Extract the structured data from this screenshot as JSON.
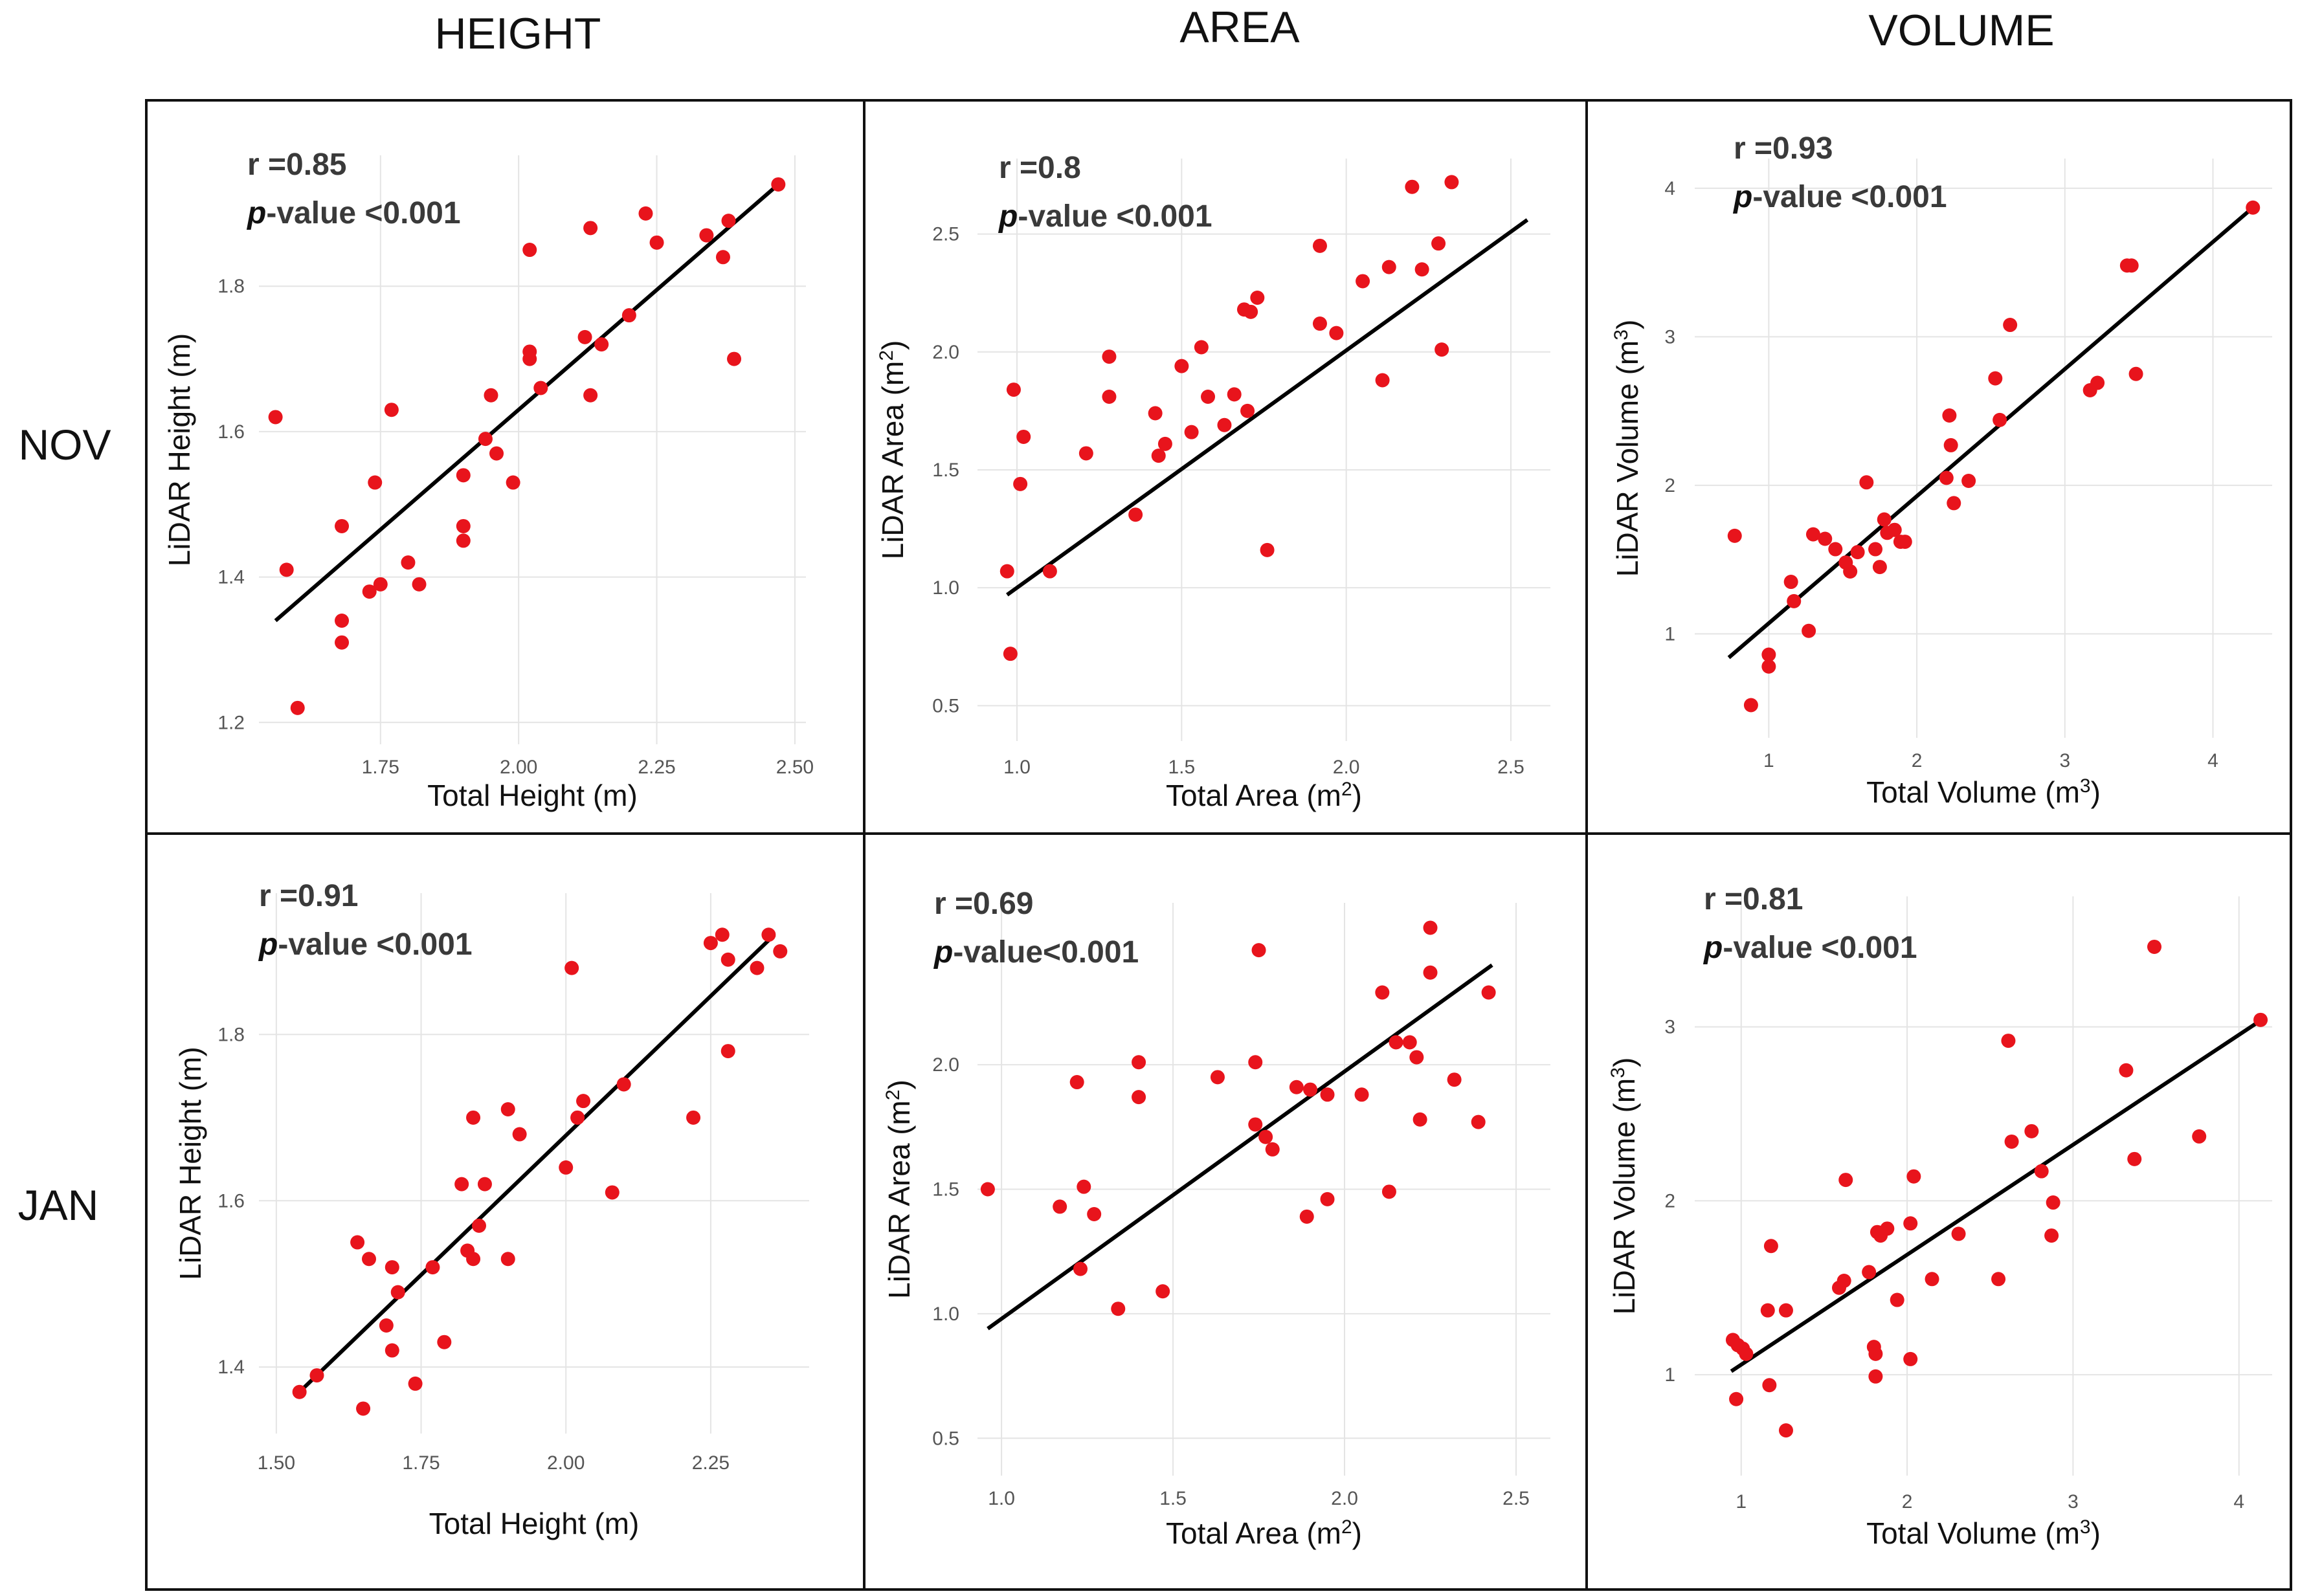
{
  "column_titles": [
    "HEIGHT",
    "AREA",
    "VOLUME"
  ],
  "row_labels": [
    "NOV",
    "JAN"
  ],
  "colors": {
    "point": "#e8141c",
    "line": "#000000",
    "grid": "#e4e4e4"
  },
  "chart_data": [
    {
      "id": "nov-height",
      "type": "scatter",
      "stats": {
        "r": "r =0.85",
        "p_prefix": "p",
        "p_text": "-value <0.001"
      },
      "xlabel": "Total Height (m)",
      "ylabel": "LiDAR Height (m)",
      "xlim": [
        1.53,
        2.52
      ],
      "ylim": [
        1.17,
        1.98
      ],
      "xticks": [
        1.75,
        2.0,
        2.25,
        2.5
      ],
      "xticklabels": [
        "1.75",
        "2.00",
        "2.25",
        "2.50"
      ],
      "yticks": [
        1.2,
        1.4,
        1.6,
        1.8
      ],
      "yticklabels": [
        "1.2",
        "1.4",
        "1.6",
        "1.8"
      ],
      "fit": [
        [
          1.56,
          1.34
        ],
        [
          2.47,
          1.94
        ]
      ],
      "points": [
        [
          1.56,
          1.62
        ],
        [
          1.58,
          1.41
        ],
        [
          1.6,
          1.22
        ],
        [
          1.68,
          1.47
        ],
        [
          1.68,
          1.34
        ],
        [
          1.68,
          1.31
        ],
        [
          1.73,
          1.38
        ],
        [
          1.74,
          1.53
        ],
        [
          1.75,
          1.39
        ],
        [
          1.77,
          1.63
        ],
        [
          1.8,
          1.42
        ],
        [
          1.82,
          1.39
        ],
        [
          1.9,
          1.54
        ],
        [
          1.9,
          1.47
        ],
        [
          1.9,
          1.45
        ],
        [
          1.94,
          1.59
        ],
        [
          1.95,
          1.65
        ],
        [
          1.96,
          1.57
        ],
        [
          1.99,
          1.53
        ],
        [
          2.02,
          1.85
        ],
        [
          2.02,
          1.71
        ],
        [
          2.02,
          1.7
        ],
        [
          2.04,
          1.66
        ],
        [
          2.12,
          1.73
        ],
        [
          2.13,
          1.88
        ],
        [
          2.13,
          1.65
        ],
        [
          2.15,
          1.72
        ],
        [
          2.2,
          1.76
        ],
        [
          2.23,
          1.9
        ],
        [
          2.25,
          1.86
        ],
        [
          2.34,
          1.87
        ],
        [
          2.37,
          1.84
        ],
        [
          2.38,
          1.89
        ],
        [
          2.39,
          1.7
        ],
        [
          2.47,
          1.94
        ]
      ]
    },
    {
      "id": "nov-area",
      "type": "scatter",
      "stats": {
        "r": "r =0.8",
        "p_prefix": "p",
        "p_text": "-value <0.001"
      },
      "xlabel": "Total Area (m",
      "xlabel_sup": "2",
      "xlabel_end": ")",
      "ylabel": "LiDAR Area (m",
      "ylabel_sup": "2",
      "ylabel_end": ")",
      "xlim": [
        0.88,
        2.62
      ],
      "ylim": [
        0.35,
        2.82
      ],
      "xticks": [
        1.0,
        1.5,
        2.0,
        2.5
      ],
      "xticklabels": [
        "1.0",
        "1.5",
        "2.0",
        "2.5"
      ],
      "yticks": [
        0.5,
        1.0,
        1.5,
        2.0,
        2.5
      ],
      "yticklabels": [
        "0.5",
        "1.0",
        "1.5",
        "2.0",
        "2.5"
      ],
      "fit": [
        [
          0.97,
          0.97
        ],
        [
          2.55,
          2.56
        ]
      ],
      "points": [
        [
          0.97,
          1.07
        ],
        [
          0.98,
          0.72
        ],
        [
          0.99,
          1.84
        ],
        [
          1.01,
          1.44
        ],
        [
          1.02,
          1.64
        ],
        [
          1.1,
          1.07
        ],
        [
          1.21,
          1.57
        ],
        [
          1.28,
          1.98
        ],
        [
          1.28,
          1.81
        ],
        [
          1.36,
          1.31
        ],
        [
          1.42,
          1.74
        ],
        [
          1.43,
          1.56
        ],
        [
          1.45,
          1.61
        ],
        [
          1.5,
          1.94
        ],
        [
          1.53,
          1.66
        ],
        [
          1.56,
          2.02
        ],
        [
          1.58,
          1.81
        ],
        [
          1.63,
          1.69
        ],
        [
          1.66,
          1.82
        ],
        [
          1.69,
          2.18
        ],
        [
          1.71,
          2.17
        ],
        [
          1.7,
          1.75
        ],
        [
          1.73,
          2.23
        ],
        [
          1.76,
          1.16
        ],
        [
          1.92,
          2.45
        ],
        [
          1.92,
          2.12
        ],
        [
          1.97,
          2.08
        ],
        [
          2.05,
          2.3
        ],
        [
          2.11,
          1.88
        ],
        [
          2.13,
          2.36
        ],
        [
          2.2,
          2.7
        ],
        [
          2.23,
          2.35
        ],
        [
          2.28,
          2.46
        ],
        [
          2.29,
          2.01
        ],
        [
          2.32,
          2.72
        ]
      ]
    },
    {
      "id": "nov-volume",
      "type": "scatter",
      "stats": {
        "r": "r =0.93",
        "p_prefix": "p",
        "p_text": "-value <0.001"
      },
      "xlabel": "Total Volume (m",
      "xlabel_sup": "3",
      "xlabel_end": ")",
      "ylabel": "LiDAR Volume (m",
      "ylabel_sup": "3",
      "ylabel_end": ")",
      "xlim": [
        0.5,
        4.4
      ],
      "ylim": [
        0.3,
        4.2
      ],
      "xticks": [
        1,
        2,
        3,
        4
      ],
      "xticklabels": [
        "1",
        "2",
        "3",
        "4"
      ],
      "yticks": [
        1,
        2,
        3,
        4
      ],
      "yticklabels": [
        "1",
        "2",
        "3",
        "4"
      ],
      "fit": [
        [
          0.73,
          0.84
        ],
        [
          4.27,
          3.87
        ]
      ],
      "points": [
        [
          0.88,
          0.52
        ],
        [
          1.0,
          0.86
        ],
        [
          1.0,
          0.78
        ],
        [
          1.15,
          1.35
        ],
        [
          1.17,
          1.22
        ],
        [
          1.27,
          1.02
        ],
        [
          1.3,
          1.67
        ],
        [
          1.38,
          1.64
        ],
        [
          1.45,
          1.57
        ],
        [
          1.52,
          1.48
        ],
        [
          1.55,
          1.42
        ],
        [
          1.6,
          1.55
        ],
        [
          1.66,
          2.02
        ],
        [
          1.72,
          1.57
        ],
        [
          1.75,
          1.45
        ],
        [
          1.78,
          1.77
        ],
        [
          1.8,
          1.68
        ],
        [
          1.85,
          1.7
        ],
        [
          1.89,
          1.62
        ],
        [
          1.92,
          1.62
        ],
        [
          2.2,
          2.05
        ],
        [
          2.22,
          2.47
        ],
        [
          2.23,
          2.27
        ],
        [
          2.25,
          1.88
        ],
        [
          2.35,
          2.03
        ],
        [
          2.53,
          2.72
        ],
        [
          2.56,
          2.44
        ],
        [
          2.63,
          3.08
        ],
        [
          3.17,
          2.64
        ],
        [
          3.22,
          2.69
        ],
        [
          3.42,
          3.48
        ],
        [
          3.45,
          3.48
        ],
        [
          3.48,
          2.75
        ],
        [
          4.27,
          3.87
        ],
        [
          0.77,
          1.66
        ]
      ]
    },
    {
      "id": "jan-height",
      "type": "scatter",
      "stats": {
        "r": "r =0.91",
        "p_prefix": "p",
        "p_text": "-value <0.001"
      },
      "xlabel": "Total Height (m)",
      "ylabel": "LiDAR Height (m)",
      "xlim": [
        1.47,
        2.42
      ],
      "ylim": [
        1.32,
        1.97
      ],
      "xticks": [
        1.5,
        1.75,
        2.0,
        2.25
      ],
      "xticklabels": [
        "1.50",
        "1.75",
        "2.00",
        "2.25"
      ],
      "yticks": [
        1.4,
        1.6,
        1.8
      ],
      "yticklabels": [
        "1.4",
        "1.6",
        "1.8"
      ],
      "fit": [
        [
          1.54,
          1.37
        ],
        [
          2.36,
          1.92
        ]
      ],
      "points": [
        [
          1.54,
          1.37
        ],
        [
          1.57,
          1.39
        ],
        [
          1.64,
          1.55
        ],
        [
          1.65,
          1.35
        ],
        [
          1.66,
          1.53
        ],
        [
          1.69,
          1.45
        ],
        [
          1.7,
          1.52
        ],
        [
          1.7,
          1.42
        ],
        [
          1.71,
          1.49
        ],
        [
          1.74,
          1.38
        ],
        [
          1.77,
          1.52
        ],
        [
          1.79,
          1.43
        ],
        [
          1.82,
          1.62
        ],
        [
          1.83,
          1.54
        ],
        [
          1.84,
          1.7
        ],
        [
          1.84,
          1.53
        ],
        [
          1.85,
          1.57
        ],
        [
          1.86,
          1.62
        ],
        [
          1.9,
          1.71
        ],
        [
          1.9,
          1.53
        ],
        [
          1.92,
          1.68
        ],
        [
          2.0,
          1.64
        ],
        [
          2.01,
          1.88
        ],
        [
          2.02,
          1.7
        ],
        [
          2.03,
          1.72
        ],
        [
          2.08,
          1.61
        ],
        [
          2.1,
          1.74
        ],
        [
          2.22,
          1.7
        ],
        [
          2.25,
          1.91
        ],
        [
          2.27,
          1.92
        ],
        [
          2.28,
          1.89
        ],
        [
          2.28,
          1.78
        ],
        [
          2.33,
          1.88
        ],
        [
          2.35,
          1.92
        ],
        [
          2.37,
          1.9
        ]
      ]
    },
    {
      "id": "jan-area",
      "type": "scatter",
      "stats": {
        "r": "r =0.69",
        "p_prefix": "p",
        "p_text": "-value<0.001"
      },
      "xlabel": "Total Area (m",
      "xlabel_sup": "2",
      "xlabel_end": ")",
      "ylabel": "LiDAR Area (m",
      "ylabel_sup": "2",
      "ylabel_end": ")",
      "xlim": [
        0.93,
        2.6
      ],
      "ylim": [
        0.35,
        2.65
      ],
      "xticks": [
        1.0,
        1.5,
        2.0,
        2.5
      ],
      "xticklabels": [
        "1.0",
        "1.5",
        "2.0",
        "2.5"
      ],
      "yticks": [
        0.5,
        1.0,
        1.5,
        2.0
      ],
      "yticklabels": [
        "0.5",
        "1.0",
        "1.5",
        "2.0"
      ],
      "fit": [
        [
          0.96,
          0.94
        ],
        [
          2.43,
          2.4
        ]
      ],
      "points": [
        [
          0.96,
          1.5
        ],
        [
          1.17,
          1.43
        ],
        [
          1.22,
          1.93
        ],
        [
          1.23,
          1.18
        ],
        [
          1.24,
          1.51
        ],
        [
          1.27,
          1.4
        ],
        [
          1.34,
          1.02
        ],
        [
          1.4,
          2.01
        ],
        [
          1.4,
          1.87
        ],
        [
          1.47,
          1.09
        ],
        [
          1.63,
          1.95
        ],
        [
          1.74,
          2.01
        ],
        [
          1.74,
          1.76
        ],
        [
          1.75,
          2.46
        ],
        [
          1.77,
          1.71
        ],
        [
          1.79,
          1.66
        ],
        [
          1.86,
          1.91
        ],
        [
          1.89,
          1.39
        ],
        [
          1.9,
          1.9
        ],
        [
          1.95,
          1.88
        ],
        [
          1.95,
          1.46
        ],
        [
          2.05,
          1.88
        ],
        [
          2.11,
          2.29
        ],
        [
          2.13,
          1.49
        ],
        [
          2.15,
          2.09
        ],
        [
          2.19,
          2.09
        ],
        [
          2.21,
          2.03
        ],
        [
          2.22,
          1.78
        ],
        [
          2.25,
          2.55
        ],
        [
          2.25,
          2.37
        ],
        [
          2.32,
          1.94
        ],
        [
          2.39,
          1.77
        ],
        [
          2.42,
          2.29
        ]
      ]
    },
    {
      "id": "jan-volume",
      "type": "scatter",
      "stats": {
        "r": "r =0.81",
        "p_prefix": "p",
        "p_text": "-value <0.001"
      },
      "xlabel": "Total Volume (m",
      "xlabel_sup": "3",
      "xlabel_end": ")",
      "ylabel": "LiDAR Volume (m",
      "ylabel_sup": "3",
      "ylabel_end": ")",
      "xlim": [
        0.72,
        4.2
      ],
      "ylim": [
        0.42,
        3.75
      ],
      "xticks": [
        1,
        2,
        3,
        4
      ],
      "xticklabels": [
        "1",
        "2",
        "3",
        "4"
      ],
      "yticks": [
        1,
        2,
        3
      ],
      "yticklabels": [
        "1",
        "2",
        "3"
      ],
      "fit": [
        [
          0.94,
          1.02
        ],
        [
          4.12,
          3.03
        ]
      ],
      "points": [
        [
          0.95,
          1.2
        ],
        [
          0.97,
          0.86
        ],
        [
          0.98,
          1.17
        ],
        [
          1.01,
          1.15
        ],
        [
          1.03,
          1.12
        ],
        [
          1.16,
          1.37
        ],
        [
          1.17,
          0.94
        ],
        [
          1.18,
          1.74
        ],
        [
          1.27,
          1.37
        ],
        [
          1.27,
          0.68
        ],
        [
          1.59,
          1.5
        ],
        [
          1.62,
          1.54
        ],
        [
          1.63,
          2.12
        ],
        [
          1.77,
          1.59
        ],
        [
          1.8,
          1.16
        ],
        [
          1.81,
          1.12
        ],
        [
          1.81,
          0.99
        ],
        [
          1.82,
          1.82
        ],
        [
          1.84,
          1.8
        ],
        [
          1.88,
          1.84
        ],
        [
          1.94,
          1.43
        ],
        [
          2.02,
          1.87
        ],
        [
          2.02,
          1.09
        ],
        [
          2.04,
          2.14
        ],
        [
          2.15,
          1.55
        ],
        [
          2.31,
          1.81
        ],
        [
          2.55,
          1.55
        ],
        [
          2.61,
          2.92
        ],
        [
          2.63,
          2.34
        ],
        [
          2.75,
          2.4
        ],
        [
          2.81,
          2.17
        ],
        [
          2.87,
          1.8
        ],
        [
          2.88,
          1.99
        ],
        [
          3.32,
          2.75
        ],
        [
          3.37,
          2.24
        ],
        [
          3.49,
          3.46
        ],
        [
          3.76,
          2.37
        ],
        [
          4.13,
          3.04
        ]
      ]
    }
  ]
}
